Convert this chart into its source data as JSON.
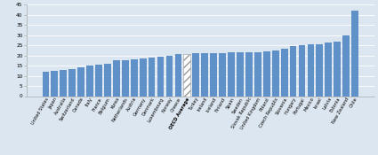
{
  "categories": [
    "United States",
    "Japan",
    "Australia",
    "Switzerland",
    "Canada",
    "Italy",
    "France",
    "Belgium",
    "Korea",
    "Netherlands",
    "Austria",
    "Germany",
    "Denmark",
    "Luxembourg",
    "Norway",
    "Greece",
    "OECD Average",
    "Turkey",
    "Ireland",
    "Iceland",
    "Finland",
    "Spain",
    "Sweden",
    "Slovak Republic",
    "United Kingdom",
    "Poland",
    "Czech Republic",
    "Slovenia",
    "Hungary",
    "Portugal",
    "Mexico",
    "Israel",
    "Latvia",
    "Estonia",
    "New Zealand",
    "Chile"
  ],
  "values": [
    12.0,
    12.5,
    13.0,
    13.5,
    14.0,
    15.0,
    15.5,
    15.7,
    17.5,
    17.5,
    18.0,
    18.5,
    19.0,
    19.5,
    20.0,
    20.5,
    20.5,
    21.0,
    21.0,
    21.0,
    21.0,
    21.5,
    21.5,
    21.5,
    21.5,
    22.0,
    22.5,
    23.5,
    24.5,
    25.0,
    25.5,
    25.5,
    26.5,
    27.0,
    30.0,
    42.0
  ],
  "bar_color": "#6090c8",
  "oecd_face": "#ffffff",
  "oecd_hatch_color": "#999999",
  "background_color": "#dce6f0",
  "plot_bg_color": "#dce6f0",
  "ylim": [
    0,
    45
  ],
  "yticks": [
    0,
    5,
    10,
    15,
    20,
    25,
    30,
    35,
    40,
    45
  ],
  "grid_color": "#ffffff",
  "tick_fontsize": 4.2,
  "xlabel_fontsize": 3.6,
  "oecd_index": 16,
  "bar_width": 0.78
}
